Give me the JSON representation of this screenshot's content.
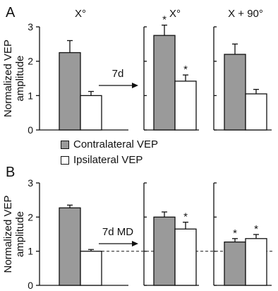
{
  "chart_data": [
    {
      "panel_label": "A",
      "type": "bar",
      "ylabel": "Normalized VEP amplitude",
      "ylabel_lines": [
        "Normalized VEP",
        "amplitude"
      ],
      "ylim": [
        0,
        3
      ],
      "yticks": [
        "0",
        "1",
        "2",
        "3"
      ],
      "arrow_label": "7d",
      "reference_line": null,
      "groups": [
        {
          "title": "X°",
          "values": [
            2.25,
            1.0
          ],
          "errors": [
            0.35,
            0.12
          ],
          "significant": [
            false,
            false
          ]
        },
        {
          "title": "X°",
          "values": [
            2.75,
            1.42
          ],
          "errors": [
            0.3,
            0.18
          ],
          "significant": [
            true,
            true
          ]
        },
        {
          "title": "X + 90°",
          "values": [
            2.2,
            1.05
          ],
          "errors": [
            0.3,
            0.13
          ],
          "significant": [
            false,
            false
          ]
        }
      ]
    },
    {
      "panel_label": "B",
      "type": "bar",
      "ylabel": "Normalized VEP amplitude",
      "ylabel_lines": [
        "Normalized VEP",
        "amplitude"
      ],
      "ylim": [
        0,
        3
      ],
      "yticks": [
        "0",
        "1",
        "2",
        "3"
      ],
      "arrow_label": "7d MD",
      "reference_line": 1.0,
      "groups": [
        {
          "title": "",
          "values": [
            2.27,
            1.0
          ],
          "errors": [
            0.08,
            0.05
          ],
          "significant": [
            false,
            false
          ]
        },
        {
          "title": "",
          "values": [
            2.0,
            1.65
          ],
          "errors": [
            0.15,
            0.2
          ],
          "significant": [
            false,
            true
          ]
        },
        {
          "title": "",
          "values": [
            1.27,
            1.37
          ],
          "errors": [
            0.1,
            0.12
          ],
          "significant": [
            true,
            true
          ]
        }
      ]
    }
  ],
  "legend": {
    "contralateral_label": "Contralateral VEP",
    "ipsilateral_label": "Ipsilateral VEP"
  },
  "colors": {
    "contralateral": "#9a9a9a",
    "ipsilateral": "#ffffff",
    "outline": "#111111"
  },
  "significance_marker": "*"
}
